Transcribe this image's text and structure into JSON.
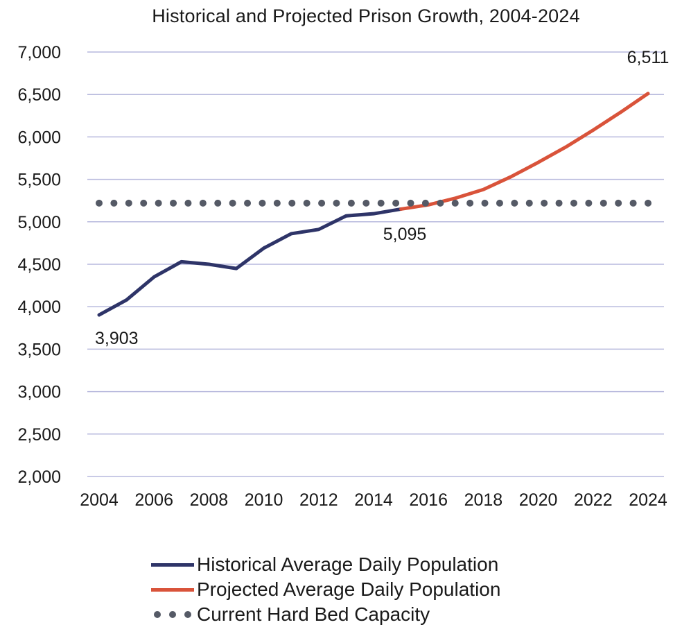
{
  "chart_data": {
    "type": "line",
    "title": "Historical and Projected Prison Growth, 2004-2024",
    "xlabel": "",
    "ylabel": "",
    "xlim": [
      2004,
      2024
    ],
    "ylim": [
      2000,
      7000
    ],
    "x_ticks": [
      "2004",
      "2006",
      "2008",
      "2010",
      "2012",
      "2014",
      "2016",
      "2018",
      "2020",
      "2022",
      "2024"
    ],
    "y_ticks": [
      "7,000",
      "6,500",
      "6,000",
      "5,500",
      "5,000",
      "4,500",
      "4,000",
      "3,500",
      "3,000",
      "2,500",
      "2,000"
    ],
    "y_tick_values": [
      7000,
      6500,
      6000,
      5500,
      5000,
      4500,
      4000,
      3500,
      3000,
      2500,
      2000
    ],
    "grid": "horizontal",
    "legend_position": "bottom",
    "series": [
      {
        "name": "Historical Average Daily Population",
        "style": "solid",
        "color": "#2e3468",
        "x": [
          2004,
          2005,
          2006,
          2007,
          2008,
          2009,
          2010,
          2011,
          2012,
          2013,
          2014,
          2015
        ],
        "values": [
          3903,
          4080,
          4350,
          4530,
          4500,
          4450,
          4690,
          4860,
          4910,
          5070,
          5095,
          5150
        ]
      },
      {
        "name": "Projected Average Daily Population",
        "style": "solid",
        "color": "#d9533a",
        "x": [
          2015,
          2016,
          2017,
          2018,
          2019,
          2020,
          2021,
          2022,
          2023,
          2024
        ],
        "values": [
          5150,
          5200,
          5280,
          5380,
          5530,
          5700,
          5880,
          6080,
          6290,
          6511
        ]
      },
      {
        "name": "Current Hard Bed Capacity",
        "style": "dotted",
        "color": "#555a66",
        "x": [
          2004,
          2024
        ],
        "values": [
          5220,
          5220
        ]
      }
    ],
    "annotations": [
      {
        "text": "3,903",
        "x": 2004,
        "y": 3903
      },
      {
        "text": "5,095",
        "x": 2014,
        "y": 5095
      },
      {
        "text": "6,511",
        "x": 2024,
        "y": 6511
      }
    ]
  }
}
